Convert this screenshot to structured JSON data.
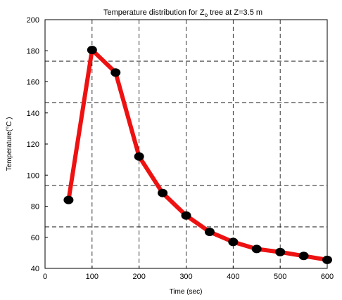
{
  "chart_data": {
    "type": "line",
    "title": {
      "prefix": "Temperature distribution for Z",
      "subscript": "o",
      "suffix": " tree at Z=3.5 m"
    },
    "xlabel": "Time (sec)",
    "ylabel": "Temperature(°C   )",
    "xlim": [
      0,
      600
    ],
    "ylim": [
      40,
      200
    ],
    "xticks": [
      0,
      100,
      200,
      300,
      400,
      500,
      600
    ],
    "yticks": [
      40,
      60,
      80,
      100,
      120,
      140,
      160,
      180,
      200
    ],
    "xtick_labels": [
      "0",
      "100",
      "200",
      "300",
      "400",
      "500",
      "600"
    ],
    "ytick_labels": [
      "40",
      "60",
      "80",
      "100",
      "120",
      "140",
      "160",
      "180",
      "200"
    ],
    "vertical_gridlines_x": [
      100,
      200,
      300,
      400,
      500
    ],
    "horizontal_gridlines_y": [
      66.7,
      93.3,
      146.7,
      173.3
    ],
    "grid": true,
    "grid_style": "dashed",
    "series": [
      {
        "x": [
          50,
          100,
          150,
          200,
          250,
          300,
          350,
          400,
          450,
          500,
          550,
          600
        ],
        "y": [
          84,
          180.5,
          166,
          112,
          88.5,
          74,
          63.5,
          57,
          52.5,
          50.5,
          48,
          45.5
        ],
        "color": "#ee1111",
        "marker_color": "#000000"
      }
    ]
  }
}
